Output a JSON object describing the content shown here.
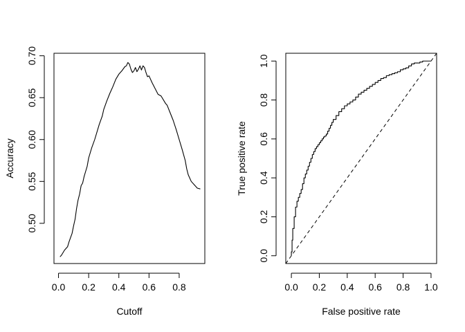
{
  "chart_data": [
    {
      "type": "line",
      "xlabel": "Cutoff",
      "ylabel": "Accuracy",
      "x_ticks": [
        0.0,
        0.2,
        0.4,
        0.6,
        0.8
      ],
      "x_tick_labels": [
        "0.0",
        "0.2",
        "0.4",
        "0.6",
        "0.8"
      ],
      "y_ticks": [
        0.5,
        0.55,
        0.6,
        0.65,
        0.7
      ],
      "y_tick_labels": [
        "0.50",
        "0.55",
        "0.60",
        "0.65",
        "0.70"
      ],
      "xlim": [
        -0.03,
        0.97
      ],
      "ylim": [
        0.452,
        0.703
      ],
      "series": [
        {
          "name": "Accuracy",
          "x": [
            0.01,
            0.02,
            0.04,
            0.06,
            0.07,
            0.08,
            0.09,
            0.1,
            0.11,
            0.12,
            0.13,
            0.14,
            0.15,
            0.16,
            0.17,
            0.18,
            0.19,
            0.2,
            0.22,
            0.24,
            0.25,
            0.27,
            0.29,
            0.3,
            0.32,
            0.34,
            0.36,
            0.38,
            0.4,
            0.42,
            0.44,
            0.45,
            0.46,
            0.47,
            0.48,
            0.49,
            0.5,
            0.51,
            0.52,
            0.53,
            0.54,
            0.55,
            0.56,
            0.57,
            0.58,
            0.59,
            0.6,
            0.62,
            0.64,
            0.66,
            0.68,
            0.7,
            0.71,
            0.72,
            0.74,
            0.76,
            0.78,
            0.8,
            0.82,
            0.84,
            0.85,
            0.86,
            0.88,
            0.9,
            0.92,
            0.94
          ],
          "values": [
            0.46,
            0.462,
            0.468,
            0.472,
            0.478,
            0.483,
            0.488,
            0.497,
            0.505,
            0.518,
            0.528,
            0.535,
            0.545,
            0.548,
            0.556,
            0.562,
            0.568,
            0.578,
            0.59,
            0.6,
            0.606,
            0.618,
            0.628,
            0.636,
            0.646,
            0.655,
            0.663,
            0.672,
            0.678,
            0.682,
            0.687,
            0.688,
            0.692,
            0.69,
            0.684,
            0.68,
            0.682,
            0.686,
            0.681,
            0.684,
            0.688,
            0.683,
            0.688,
            0.686,
            0.68,
            0.675,
            0.676,
            0.668,
            0.661,
            0.654,
            0.652,
            0.646,
            0.643,
            0.641,
            0.632,
            0.623,
            0.612,
            0.6,
            0.588,
            0.575,
            0.565,
            0.558,
            0.55,
            0.546,
            0.542,
            0.541
          ]
        }
      ]
    },
    {
      "type": "line",
      "xlabel": "False positive rate",
      "ylabel": "True positive rate",
      "x_ticks": [
        0.0,
        0.2,
        0.4,
        0.6,
        0.8,
        1.0
      ],
      "x_tick_labels": [
        "0.0",
        "0.2",
        "0.4",
        "0.6",
        "0.8",
        "1.0"
      ],
      "y_ticks": [
        0.0,
        0.2,
        0.4,
        0.6,
        0.8,
        1.0
      ],
      "y_tick_labels": [
        "0.0",
        "0.2",
        "0.4",
        "0.6",
        "0.8",
        "1.0"
      ],
      "xlim": [
        -0.04,
        1.04
      ],
      "ylim": [
        -0.04,
        1.04
      ],
      "series": [
        {
          "name": "ROC curve",
          "x": [
            0.0,
            0.0,
            0.005,
            0.01,
            0.02,
            0.03,
            0.04,
            0.05,
            0.06,
            0.07,
            0.08,
            0.09,
            0.1,
            0.11,
            0.12,
            0.13,
            0.14,
            0.15,
            0.16,
            0.17,
            0.18,
            0.19,
            0.2,
            0.21,
            0.22,
            0.23,
            0.24,
            0.25,
            0.26,
            0.27,
            0.28,
            0.29,
            0.3,
            0.32,
            0.34,
            0.36,
            0.38,
            0.4,
            0.42,
            0.44,
            0.46,
            0.48,
            0.5,
            0.52,
            0.54,
            0.56,
            0.58,
            0.6,
            0.62,
            0.64,
            0.66,
            0.68,
            0.7,
            0.72,
            0.74,
            0.76,
            0.78,
            0.8,
            0.82,
            0.84,
            0.86,
            0.88,
            0.9,
            0.92,
            0.94,
            0.96,
            0.98,
            1.0
          ],
          "values": [
            0.0,
            0.02,
            0.08,
            0.14,
            0.2,
            0.25,
            0.28,
            0.3,
            0.32,
            0.34,
            0.37,
            0.4,
            0.42,
            0.44,
            0.46,
            0.48,
            0.5,
            0.52,
            0.535,
            0.55,
            0.56,
            0.57,
            0.58,
            0.59,
            0.6,
            0.61,
            0.615,
            0.625,
            0.64,
            0.655,
            0.67,
            0.685,
            0.7,
            0.72,
            0.74,
            0.755,
            0.77,
            0.78,
            0.79,
            0.8,
            0.815,
            0.83,
            0.84,
            0.85,
            0.86,
            0.87,
            0.88,
            0.89,
            0.9,
            0.91,
            0.915,
            0.925,
            0.93,
            0.935,
            0.94,
            0.945,
            0.955,
            0.96,
            0.965,
            0.975,
            0.985,
            0.99,
            0.99,
            0.995,
            1.0,
            1.0,
            1.0,
            1.0
          ]
        },
        {
          "name": "Chance (diagonal)",
          "style": "dashed",
          "x": [
            -0.04,
            1.04
          ],
          "values": [
            -0.04,
            1.04
          ]
        }
      ]
    }
  ]
}
